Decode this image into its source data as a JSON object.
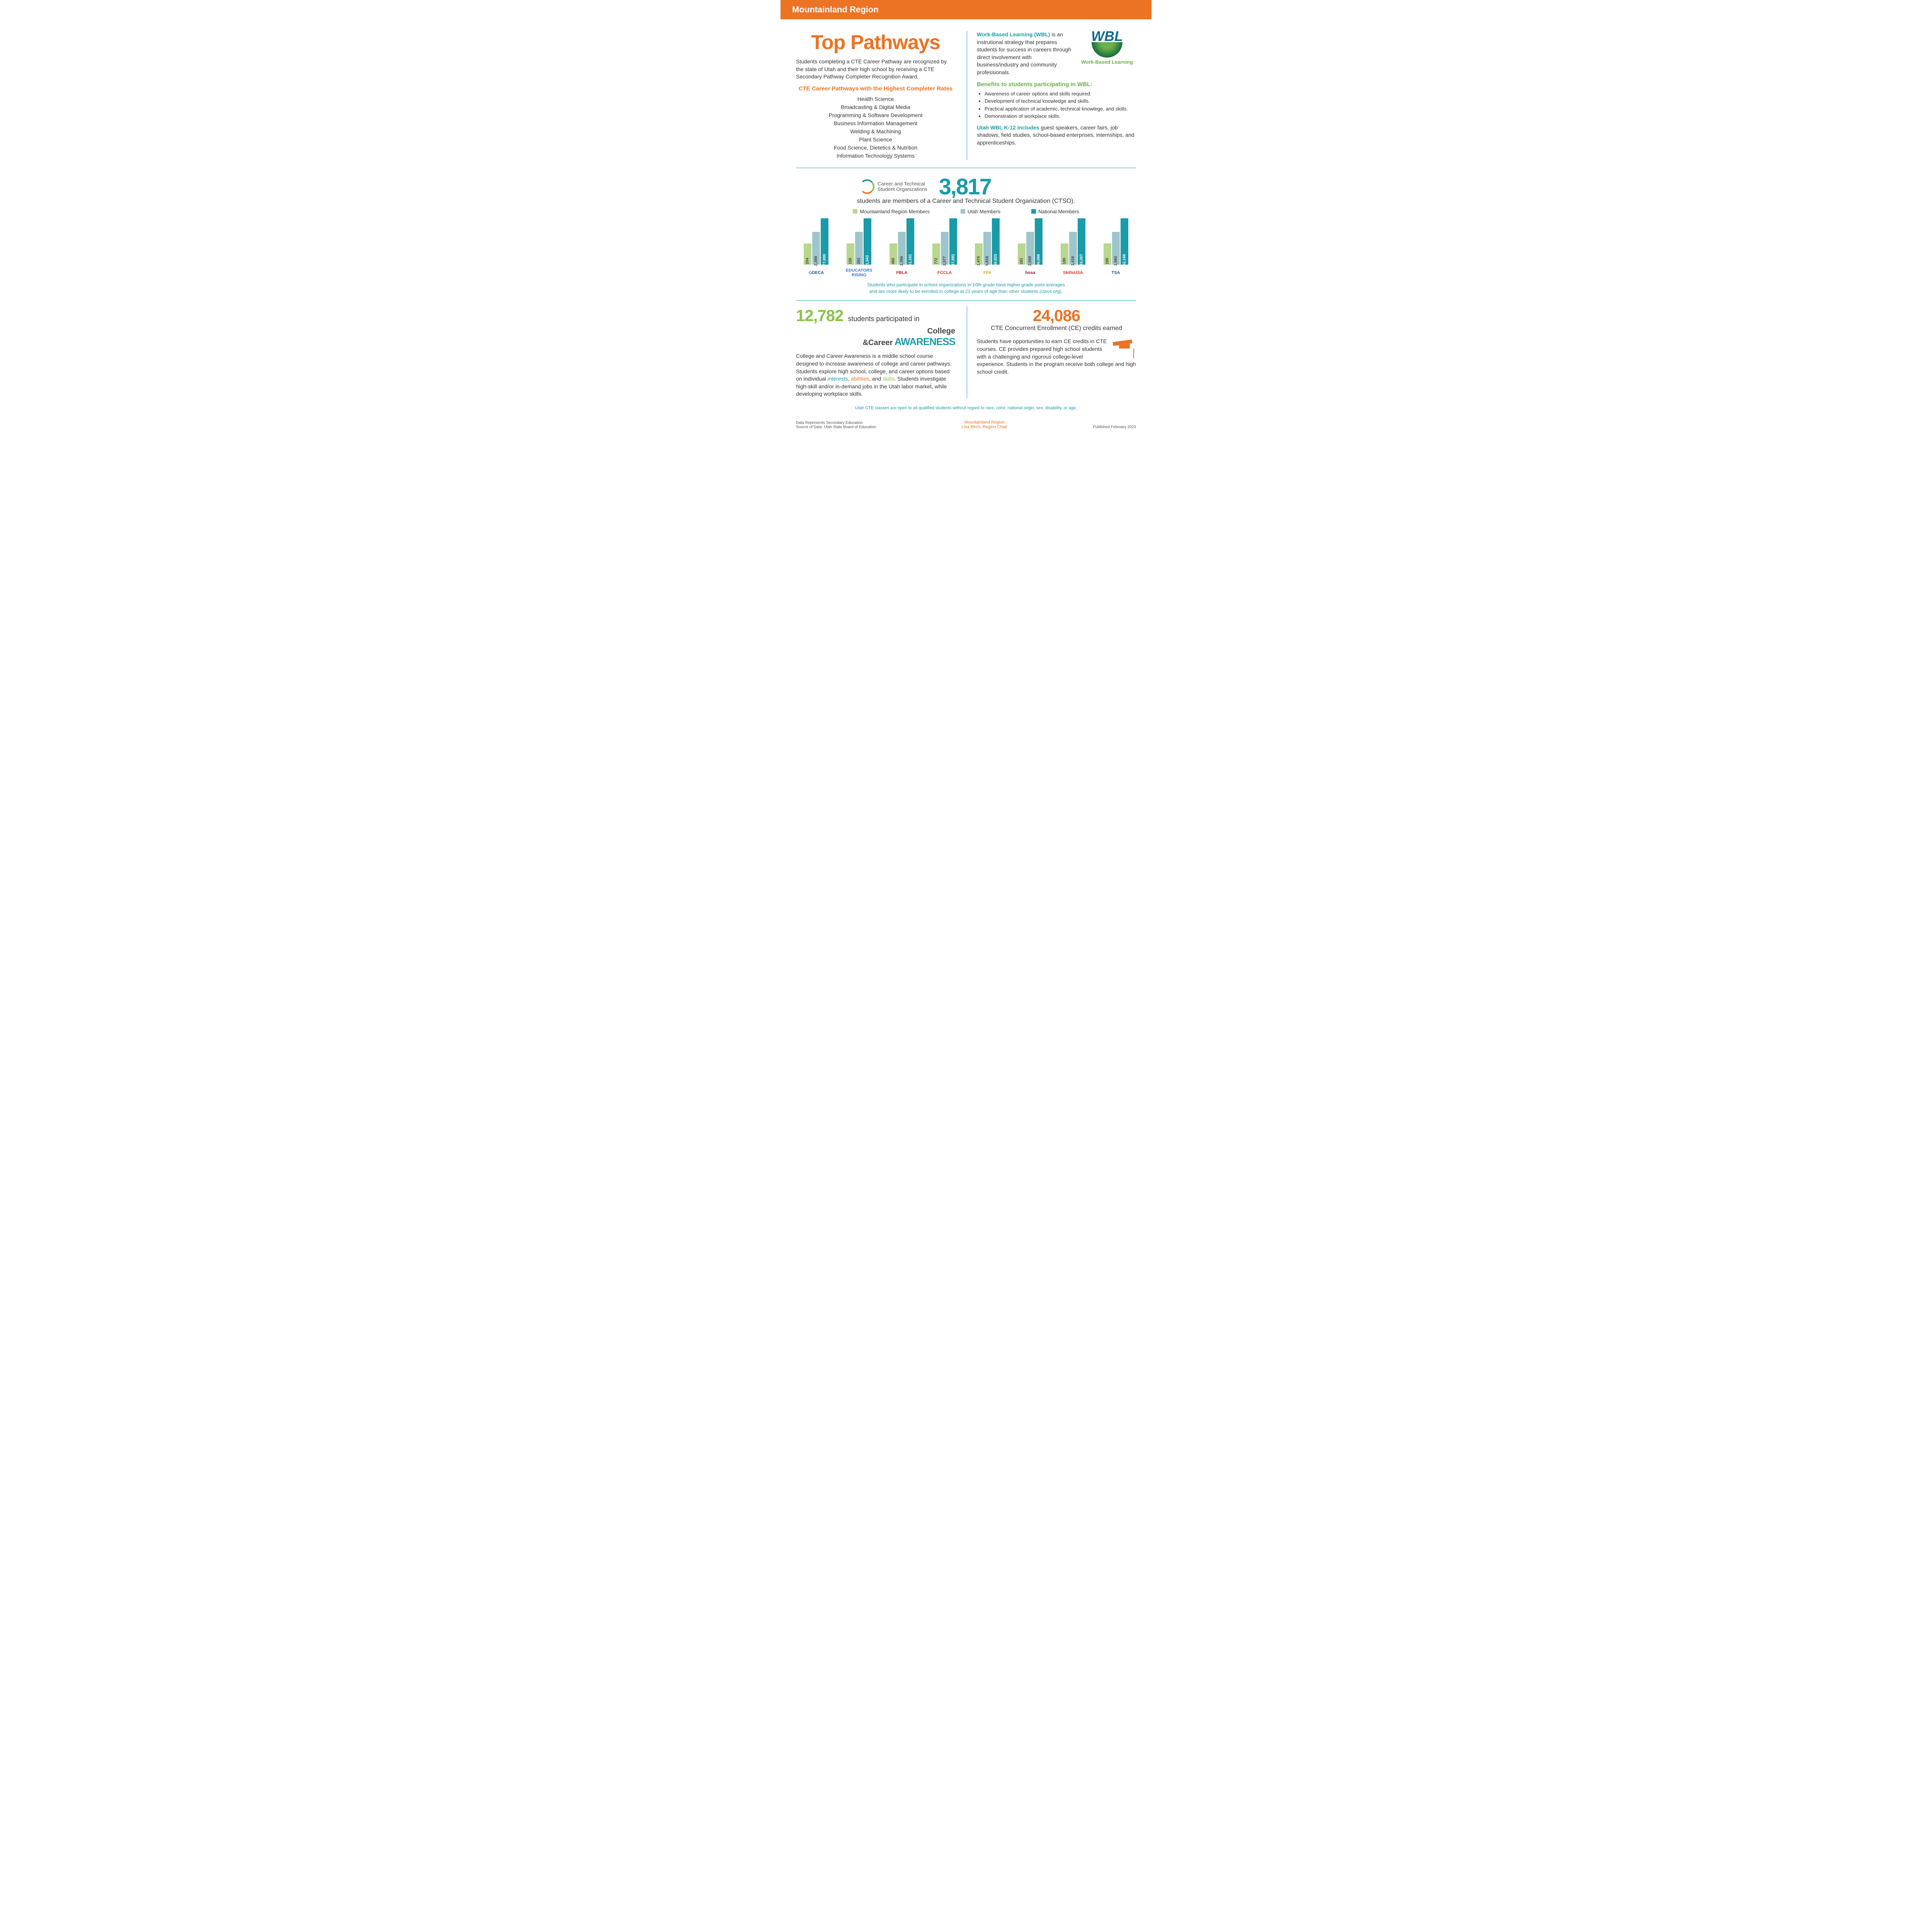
{
  "header": {
    "region": "Mountainland Region"
  },
  "top": {
    "title": "Top Pathways",
    "intro": "Students completing a CTE Career Pathway are recognized by the state of Utah and their high school by receiving a CTE Secondary Pathway Completer Recognition Award.",
    "subhead": "CTE Career Pathways with the Highest Completer Rates",
    "pathways": [
      "Health Science",
      "Broadcasting & Digital Media",
      "Programming & Software Development",
      "Business Information Management",
      "Welding & Machining",
      "Plant Science",
      "Food Science, Dietetics & Nutrition",
      "Information Technology Systems"
    ]
  },
  "wbl": {
    "label": "Work-Based Learning (WBL)",
    "desc": " is an instrutional strategy that prepares students for success in careers through direct involvement with business/industry and community professionals.",
    "logo_text": "WBL",
    "logo_sub": "Work-Based Learning",
    "benefits_head": "Benefits to students participating in WBL:",
    "benefits": [
      "Awareness of career options and skills required.",
      "Development of technical knowledge and skills.",
      "Practical application of academic, technical knowlege, and skills.",
      "Demonstration of workplace skills."
    ],
    "k12_label": "Utah WBL K-12 includes",
    "k12_desc": " guest speakers, career fairs, job shadows, field studies, school-based enterprises, internships, and apprenticeships."
  },
  "ctso": {
    "logo_line1": "Career and Technical",
    "logo_line2": "Student Organizations",
    "big_number": "3,817",
    "caption": "students are members of a Career and Technical Student Organization (CTSO).",
    "legend": {
      "region": "Mountainland Region Members",
      "utah": "Utah Members",
      "national": "National Members"
    },
    "chart": {
      "max_height": 120,
      "colors": {
        "region": "#b8d78f",
        "utah": "#9dc5cc",
        "national": "#1a9ba8"
      },
      "orgs": [
        {
          "name": "DECA",
          "logo": "◇DECA",
          "color": "#1a5490",
          "region": "204",
          "utah": "2,399",
          "national": "177,000",
          "h": [
            55,
            85,
            120
          ]
        },
        {
          "name": "Educators Rising",
          "logo": "EDUCATORS RISING",
          "color": "#3a7bc8",
          "region": "150",
          "utah": "382",
          "national": "11,543",
          "h": [
            55,
            85,
            120
          ]
        },
        {
          "name": "FBLA",
          "logo": "FBLA",
          "color": "#b22234",
          "region": "460",
          "utah": "2,396",
          "national": "161,161",
          "h": [
            55,
            85,
            120
          ]
        },
        {
          "name": "FCCLA",
          "logo": "FCCLA",
          "color": "#d4342a",
          "region": "772",
          "utah": "2,577",
          "national": "197,882",
          "h": [
            55,
            85,
            120
          ]
        },
        {
          "name": "FFA",
          "logo": "FFA",
          "color": "#c9a227",
          "region": "1,475",
          "utah": "5,816",
          "national": "850,823",
          "h": [
            55,
            85,
            120
          ]
        },
        {
          "name": "HOSA",
          "logo": "hosa",
          "color": "#8b1a3a",
          "region": "281",
          "utah": "2,558",
          "national": "196,066",
          "h": [
            55,
            85,
            120
          ]
        },
        {
          "name": "SkillsUSA",
          "logo": "SkillsUSA",
          "color": "#d4342a",
          "region": "180",
          "utah": "1,416",
          "national": "393,357",
          "h": [
            55,
            85,
            120
          ]
        },
        {
          "name": "TSA",
          "logo": "TSA",
          "color": "#1a5490",
          "region": "295",
          "utah": "1,583",
          "national": "262,166",
          "h": [
            55,
            85,
            120
          ]
        }
      ]
    },
    "note": "Students who participate in school organizations in 10th grade have higher grade point averages\nand are more likely to be enrolled in college at 21 years of age than other students (ctsos.org)."
  },
  "cca": {
    "number": "12,782",
    "label": "students participated in",
    "logo1": "College",
    "logo2": "&Career",
    "logo3": "Awareness",
    "desc_pre": "College and Career Awareness is a middle school course designed to increase awareness of college and career pathways. Students explore high school, college, and career options based on individual ",
    "w1": "interests",
    "w2": "abilities",
    "w3": "skills",
    "desc_post": ". Students investigate high-skill and/or in-demand jobs in the Utah labor market, while developing workplace skills."
  },
  "ce": {
    "number": "24,086",
    "label": "CTE Concurrent Enrollment (CE) credits earned",
    "desc": "Students have opportunities to earn CE credits in CTE courses. CE provides prepared high school students with a challenging and rigorous college-level experience. Students in the program receive both college and high school credit."
  },
  "disclaimer": "Utah CTE classes are open to all qualified students without regard to race, color, national origin, sex, disability, or age.",
  "footer": {
    "left1": "Data Represents Secondary Education",
    "left2": "Source of Data: Utah State Board of Education",
    "center1": "Mountainland Region",
    "center2": "Lisa Birch, Region Chair",
    "right": "Published February 2023"
  }
}
